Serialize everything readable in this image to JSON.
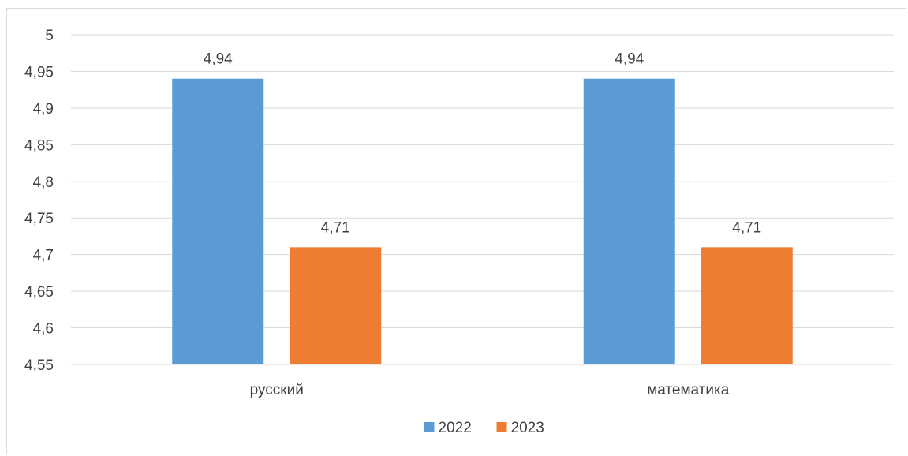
{
  "chart_data": {
    "type": "bar",
    "categories": [
      "русский",
      "математика"
    ],
    "series": [
      {
        "name": "2022",
        "values": [
          4.94,
          4.94
        ],
        "color": "#5b9bd5"
      },
      {
        "name": "2023",
        "values": [
          4.71,
          4.71
        ],
        "color": "#ed7d31"
      }
    ],
    "data_labels": [
      [
        "4,94",
        "4,94"
      ],
      [
        "4,71",
        "4,71"
      ]
    ],
    "y_ticks": [
      "4,55",
      "4,6",
      "4,65",
      "4,7",
      "4,75",
      "4,8",
      "4,85",
      "4,9",
      "4,95",
      "5"
    ],
    "y_tick_values": [
      4.55,
      4.6,
      4.65,
      4.7,
      4.75,
      4.8,
      4.85,
      4.9,
      4.95,
      5.0
    ],
    "ylim": [
      4.55,
      5.0
    ],
    "grid": true,
    "legend_position": "bottom",
    "title": "",
    "xlabel": "",
    "ylabel": ""
  }
}
